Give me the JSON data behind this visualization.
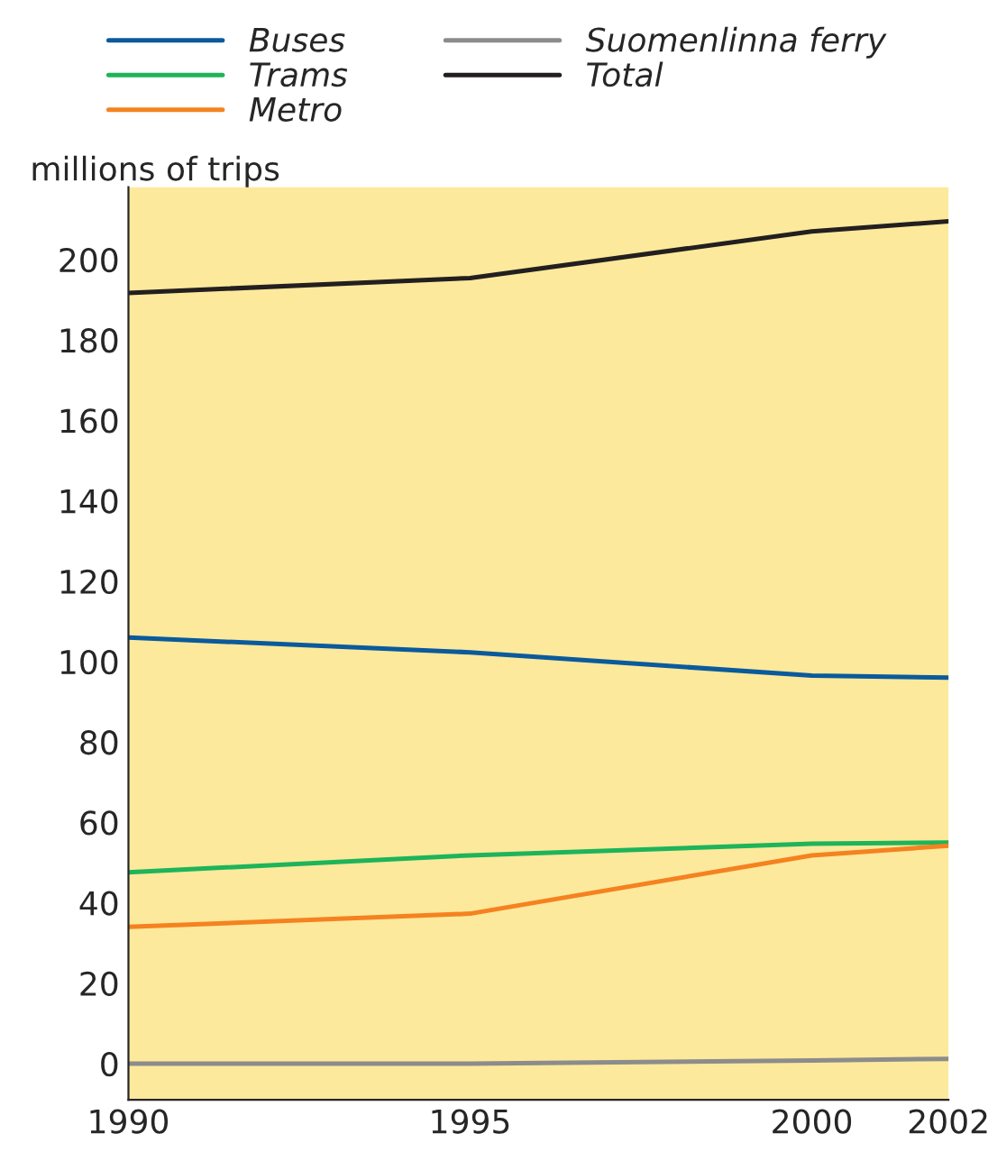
{
  "chart_data": {
    "type": "line",
    "ylabel": "millions of trips",
    "x": [
      1990,
      1995,
      2000,
      2002
    ],
    "series": [
      {
        "name": "Buses",
        "color": "#0a5a9c",
        "values": [
          106,
          102.3,
          96.5,
          96
        ]
      },
      {
        "name": "Trams",
        "color": "#1db45a",
        "values": [
          47.6,
          51.8,
          54.7,
          55
        ]
      },
      {
        "name": "Metro",
        "color": "#f58220",
        "values": [
          34,
          37.3,
          51.8,
          54.2
        ]
      },
      {
        "name": "Suomenlinna ferry",
        "color": "#8c8c8c",
        "values": [
          0,
          0,
          0.8,
          1.2
        ]
      },
      {
        "name": "Total",
        "color": "#231f20",
        "values": [
          191.7,
          195.4,
          207,
          209.5
        ]
      }
    ],
    "xlim": [
      1990,
      2002
    ],
    "xticks": [
      1990,
      1995,
      2000,
      2002
    ],
    "ylim": [
      -9,
      218
    ],
    "yticks": [
      0,
      20,
      40,
      60,
      80,
      100,
      120,
      140,
      160,
      180,
      200
    ],
    "grid": false,
    "legend": "top",
    "marker": "none",
    "line_style": "solid"
  }
}
